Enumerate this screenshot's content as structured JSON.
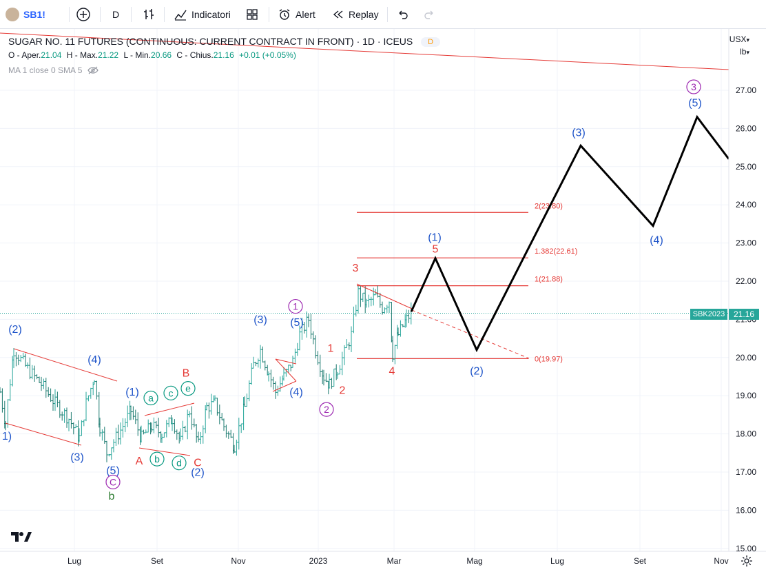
{
  "toolbar": {
    "symbol": "SB1!",
    "interval": "D",
    "indicators_label": "Indicatori",
    "alert_label": "Alert",
    "replay_label": "Replay"
  },
  "legend": {
    "title": "SUGAR NO. 11 FUTURES (CONTINUOUS: CURRENT CONTRACT IN FRONT) · 1D · ICEUS",
    "badge": "D",
    "o_label": "O - Aper.",
    "o_value": "21.04",
    "h_label": "H - Max.",
    "h_value": "21.22",
    "l_label": "L - Min.",
    "l_value": "20.66",
    "c_label": "C - Chius.",
    "c_value": "21.16",
    "change": "+0.01 (+0.05%)",
    "ma": "MA 1 close 0 SMA 5"
  },
  "price_axis": {
    "currency": "USX",
    "unit": "lb",
    "last_price": "21.16",
    "symbol_tag": "SBK2023"
  },
  "colors": {
    "up": "#26a69a",
    "down": "#26a69a",
    "wave_blue": "#1e54c9",
    "wave_red": "#e53935",
    "wave_purple": "#9c27b0",
    "wave_green": "#2e7d32",
    "wave_teal": "#089981",
    "fib": "#e53935"
  },
  "chart_data": {
    "type": "candlestick",
    "title": "SUGAR NO. 11 FUTURES (CONTINUOUS: CURRENT CONTRACT IN FRONT) · 1D · ICEUS",
    "ylim": [
      15,
      27.8
    ],
    "y_ticks": [
      "27.00",
      "26.00",
      "25.00",
      "24.00",
      "23.00",
      "22.00",
      "21.00",
      "20.00",
      "19.00",
      "18.00",
      "17.00",
      "16.00",
      "15.00"
    ],
    "x_ticks": [
      "Lug",
      "Set",
      "Nov",
      "2023",
      "Mar",
      "Mag",
      "Lug",
      "Set",
      "Nov"
    ],
    "price_path": [
      [
        0,
        19.1
      ],
      [
        8,
        18.3
      ],
      [
        20,
        20.2
      ],
      [
        40,
        19.7
      ],
      [
        60,
        19.3
      ],
      [
        80,
        18.8
      ],
      [
        100,
        18.4
      ],
      [
        115,
        17.9
      ],
      [
        125,
        18.8
      ],
      [
        137,
        19.5
      ],
      [
        145,
        18.2
      ],
      [
        155,
        17.5
      ],
      [
        165,
        17.8
      ],
      [
        175,
        18.1
      ],
      [
        190,
        18.6
      ],
      [
        205,
        17.9
      ],
      [
        220,
        18.2
      ],
      [
        235,
        18.0
      ],
      [
        250,
        18.4
      ],
      [
        262,
        17.8
      ],
      [
        275,
        18.6
      ],
      [
        288,
        17.7
      ],
      [
        300,
        18.7
      ],
      [
        312,
        18.8
      ],
      [
        325,
        18.2
      ],
      [
        340,
        17.7
      ],
      [
        355,
        18.7
      ],
      [
        368,
        19.8
      ],
      [
        378,
        20.2
      ],
      [
        390,
        19.6
      ],
      [
        400,
        19.1
      ],
      [
        412,
        19.5
      ],
      [
        425,
        19.9
      ],
      [
        435,
        20.6
      ],
      [
        448,
        21.0
      ],
      [
        458,
        20.2
      ],
      [
        470,
        19.5
      ],
      [
        478,
        19.3
      ],
      [
        490,
        19.7
      ],
      [
        500,
        20.1
      ],
      [
        510,
        20.6
      ],
      [
        520,
        21.7
      ],
      [
        532,
        21.4
      ],
      [
        545,
        21.6
      ],
      [
        555,
        21.3
      ],
      [
        565,
        21.5
      ],
      [
        570,
        20.1
      ],
      [
        578,
        20.6
      ],
      [
        590,
        21.0
      ],
      [
        597,
        21.16
      ]
    ],
    "fib_levels": [
      {
        "label": "2(23.80)",
        "value": 23.8
      },
      {
        "label": "1.382(22.61)",
        "value": 22.61
      },
      {
        "label": "1(21.88)",
        "value": 21.88
      },
      {
        "label": "0(19.97)",
        "value": 19.97
      }
    ],
    "projection": [
      {
        "t": 597,
        "price": 21.2
      },
      {
        "t": 632,
        "price": 22.6
      },
      {
        "t": 692,
        "price": 20.2
      },
      {
        "t": 843,
        "price": 25.55
      },
      {
        "t": 948,
        "price": 23.45
      },
      {
        "t": 1012,
        "price": 26.3
      },
      {
        "t": 1058,
        "price": 25.2
      }
    ],
    "wave_labels": [
      {
        "text": "(2)",
        "t": 22,
        "price": 20.65,
        "color": "blue"
      },
      {
        "text": "1)",
        "t": 10,
        "price": 17.85,
        "color": "blue"
      },
      {
        "text": "(4)",
        "t": 137,
        "price": 19.85,
        "color": "blue"
      },
      {
        "text": "(3)",
        "t": 112,
        "price": 17.3,
        "color": "blue"
      },
      {
        "text": "(5)",
        "t": 164,
        "price": 16.95,
        "color": "blue"
      },
      {
        "text": "C",
        "t": 164,
        "price": 16.65,
        "color": "purple",
        "circle": true
      },
      {
        "text": "b",
        "t": 162,
        "price": 16.28,
        "color": "green"
      },
      {
        "text": "(1)",
        "t": 192,
        "price": 19.0,
        "color": "blue"
      },
      {
        "text": "a",
        "t": 219,
        "price": 18.85,
        "color": "teal",
        "circle": true
      },
      {
        "text": "c",
        "t": 248,
        "price": 18.98,
        "color": "teal",
        "circle": true
      },
      {
        "text": "e",
        "t": 273,
        "price": 19.1,
        "color": "teal",
        "circle": true
      },
      {
        "text": "B",
        "t": 270,
        "price": 19.5,
        "color": "red"
      },
      {
        "text": "A",
        "t": 202,
        "price": 17.2,
        "color": "red"
      },
      {
        "text": "b",
        "t": 228,
        "price": 17.25,
        "color": "teal",
        "circle": true
      },
      {
        "text": "d",
        "t": 260,
        "price": 17.15,
        "color": "teal",
        "circle": true
      },
      {
        "text": "C",
        "t": 287,
        "price": 17.15,
        "color": "red"
      },
      {
        "text": "(2)",
        "t": 287,
        "price": 16.9,
        "color": "blue"
      },
      {
        "text": "(3)",
        "t": 378,
        "price": 20.9,
        "color": "blue"
      },
      {
        "text": "(4)",
        "t": 430,
        "price": 19.0,
        "color": "blue"
      },
      {
        "text": "1",
        "t": 429,
        "price": 21.25,
        "color": "purple",
        "circle": true
      },
      {
        "text": "(5)",
        "t": 431,
        "price": 20.83,
        "color": "blue"
      },
      {
        "text": "1",
        "t": 480,
        "price": 20.15,
        "color": "red"
      },
      {
        "text": "2",
        "t": 497,
        "price": 19.05,
        "color": "red"
      },
      {
        "text": "2",
        "t": 474,
        "price": 18.55,
        "color": "purple",
        "circle": true
      },
      {
        "text": "3",
        "t": 516,
        "price": 22.25,
        "color": "red"
      },
      {
        "text": "4",
        "t": 569,
        "price": 19.55,
        "color": "red"
      },
      {
        "text": "(1)",
        "t": 631,
        "price": 23.06,
        "color": "blue"
      },
      {
        "text": "5",
        "t": 632,
        "price": 22.75,
        "color": "red"
      },
      {
        "text": "(2)",
        "t": 692,
        "price": 19.55,
        "color": "blue"
      },
      {
        "text": "(3)",
        "t": 840,
        "price": 25.8,
        "color": "blue"
      },
      {
        "text": "(4)",
        "t": 953,
        "price": 22.98,
        "color": "blue"
      },
      {
        "text": "3",
        "t": 1007,
        "price": 27.0,
        "color": "purple",
        "circle": true
      },
      {
        "text": "(5)",
        "t": 1009,
        "price": 26.58,
        "color": "blue"
      }
    ]
  }
}
